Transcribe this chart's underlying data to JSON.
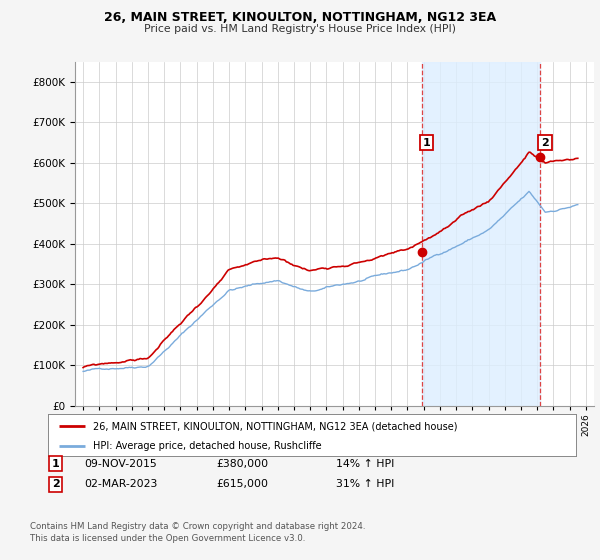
{
  "title": "26, MAIN STREET, KINOULTON, NOTTINGHAM, NG12 3EA",
  "subtitle": "Price paid vs. HM Land Registry's House Price Index (HPI)",
  "legend_line1": "26, MAIN STREET, KINOULTON, NOTTINGHAM, NG12 3EA (detached house)",
  "legend_line2": "HPI: Average price, detached house, Rushcliffe",
  "transaction1_date": "09-NOV-2015",
  "transaction1_price": "£380,000",
  "transaction1_hpi": "14% ↑ HPI",
  "transaction2_date": "02-MAR-2023",
  "transaction2_price": "£615,000",
  "transaction2_hpi": "31% ↑ HPI",
  "footer": "Contains HM Land Registry data © Crown copyright and database right 2024.\nThis data is licensed under the Open Government Licence v3.0.",
  "price_color": "#cc0000",
  "hpi_color": "#7aabdc",
  "vline_color": "#dd4444",
  "shade_color": "#ddeeff",
  "background_color": "#f5f5f5",
  "plot_bg_color": "#ffffff",
  "ylim": [
    0,
    850000
  ],
  "yticks": [
    0,
    100000,
    200000,
    300000,
    400000,
    500000,
    600000,
    700000,
    800000
  ],
  "transaction1_year": 2015.87,
  "transaction1_value": 380000,
  "transaction2_year": 2023.17,
  "transaction2_value": 615000,
  "xmin": 1994.5,
  "xmax": 2026.5
}
